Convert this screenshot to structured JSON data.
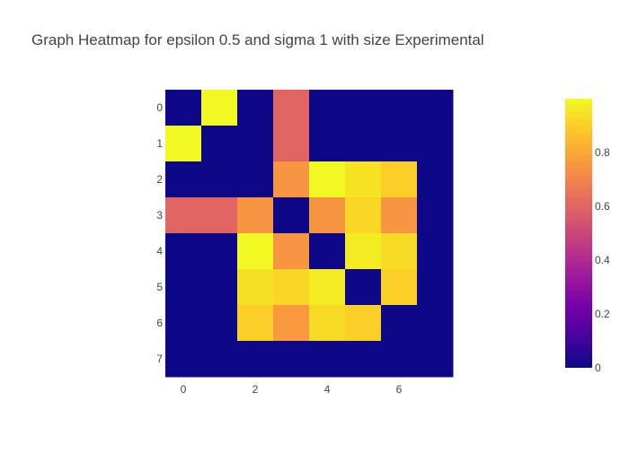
{
  "chart_data": {
    "type": "heatmap",
    "title": "Graph Heatmap for epsilon 0.5 and sigma 1 with size Experimental",
    "x_ticks": [
      0,
      2,
      4,
      6
    ],
    "y_ticks": [
      0,
      1,
      2,
      3,
      4,
      5,
      6,
      7
    ],
    "y_axis_reversed": true,
    "x_range": [
      -0.5,
      7.5
    ],
    "y_range": [
      -0.5,
      7.5
    ],
    "z_range": [
      0,
      1
    ],
    "colorbar_ticks": [
      0,
      0.2,
      0.4,
      0.6,
      0.8
    ],
    "colorscale": "plasma",
    "z": [
      [
        0,
        1,
        0,
        0.6,
        0,
        0,
        0,
        0
      ],
      [
        1,
        0,
        0,
        0.6,
        0,
        0,
        0,
        0
      ],
      [
        0,
        0,
        0,
        0.75,
        1,
        0.95,
        0.9,
        0
      ],
      [
        0.6,
        0.6,
        0.75,
        0,
        0.75,
        0.92,
        0.75,
        0
      ],
      [
        0,
        0,
        1,
        0.75,
        0,
        0.97,
        0.93,
        0
      ],
      [
        0,
        0,
        0.94,
        0.92,
        0.97,
        0,
        0.9,
        0
      ],
      [
        0,
        0,
        0.9,
        0.76,
        0.93,
        0.9,
        0,
        0
      ],
      [
        0,
        0,
        0,
        0,
        0,
        0,
        0,
        0
      ]
    ]
  },
  "colors": {
    "title": "#444444",
    "tick": "#444444",
    "background": "#ffffff"
  }
}
